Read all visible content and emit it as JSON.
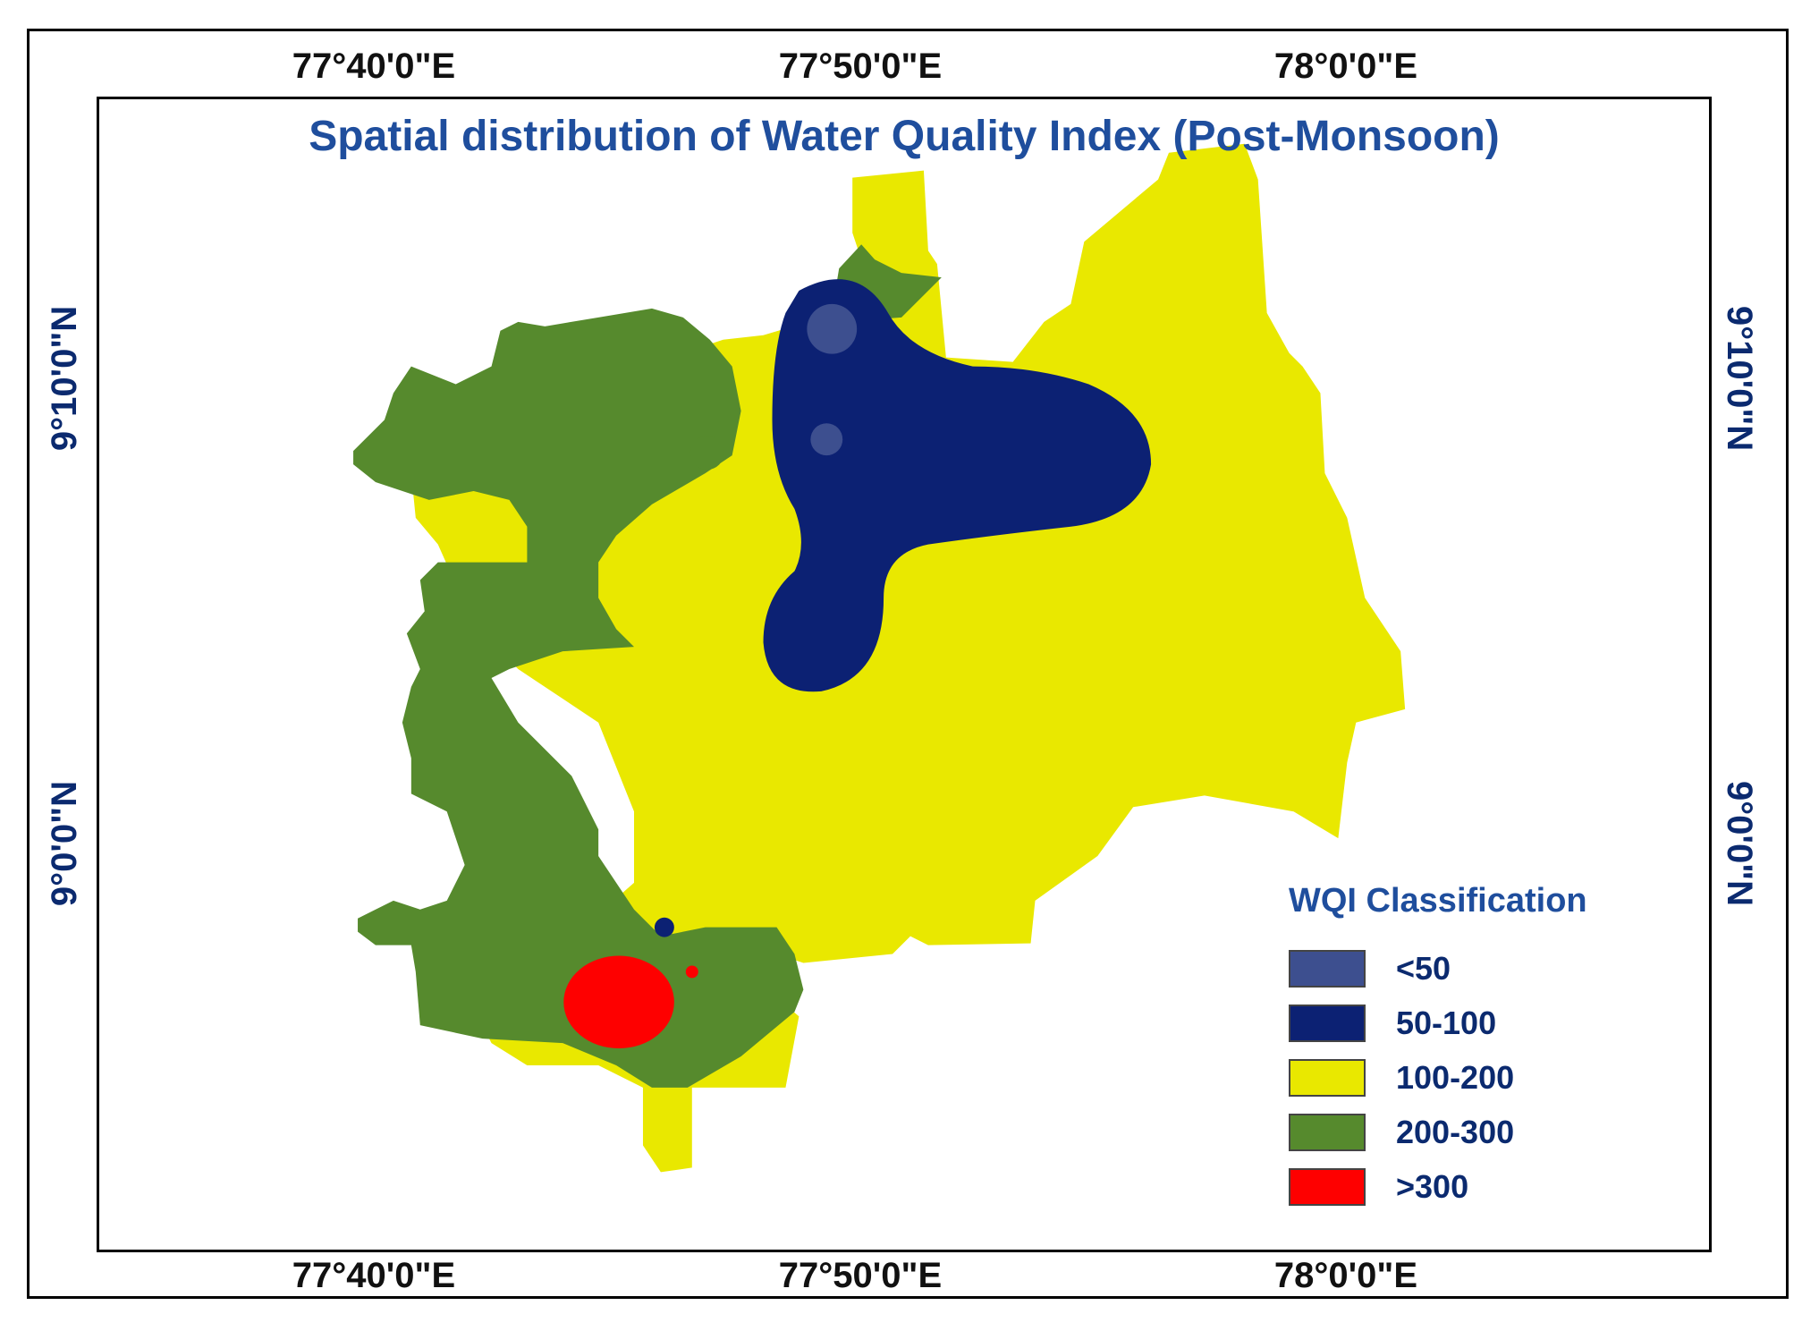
{
  "map": {
    "title": "Spatial distribution of Water Quality Index  (Post-Monsoon)",
    "longitude_labels_top": [
      "77°40'0\"E",
      "77°50'0\"E",
      "78°0'0\"E"
    ],
    "longitude_labels_bottom": [
      "77°40'0\"E",
      "77°50'0\"E",
      "78°0'0\"E"
    ],
    "latitude_labels_left": [
      "9°10'0\"N",
      "9°0'0\"N"
    ],
    "latitude_labels_right": [
      "9°10'0\"N",
      "9°0'0\"N"
    ]
  },
  "legend": {
    "title": "WQI Classification",
    "items": [
      {
        "label": "<50",
        "color": "#3d4f8f"
      },
      {
        "label": "50-100",
        "color": "#0c2173"
      },
      {
        "label": "100-200",
        "color": "#e9e800"
      },
      {
        "label": "200-300",
        "color": "#568a2d"
      },
      {
        "label": ">300",
        "color": "#fe0000"
      }
    ]
  },
  "colors": {
    "class_lt50": "#3d4f8f",
    "class_50_100": "#0c2173",
    "class_100_200": "#e9e800",
    "class_200_300": "#568a2d",
    "class_gt300": "#fe0000",
    "title": "#1f4e9d",
    "latitude_label": "#0b2a6f"
  }
}
